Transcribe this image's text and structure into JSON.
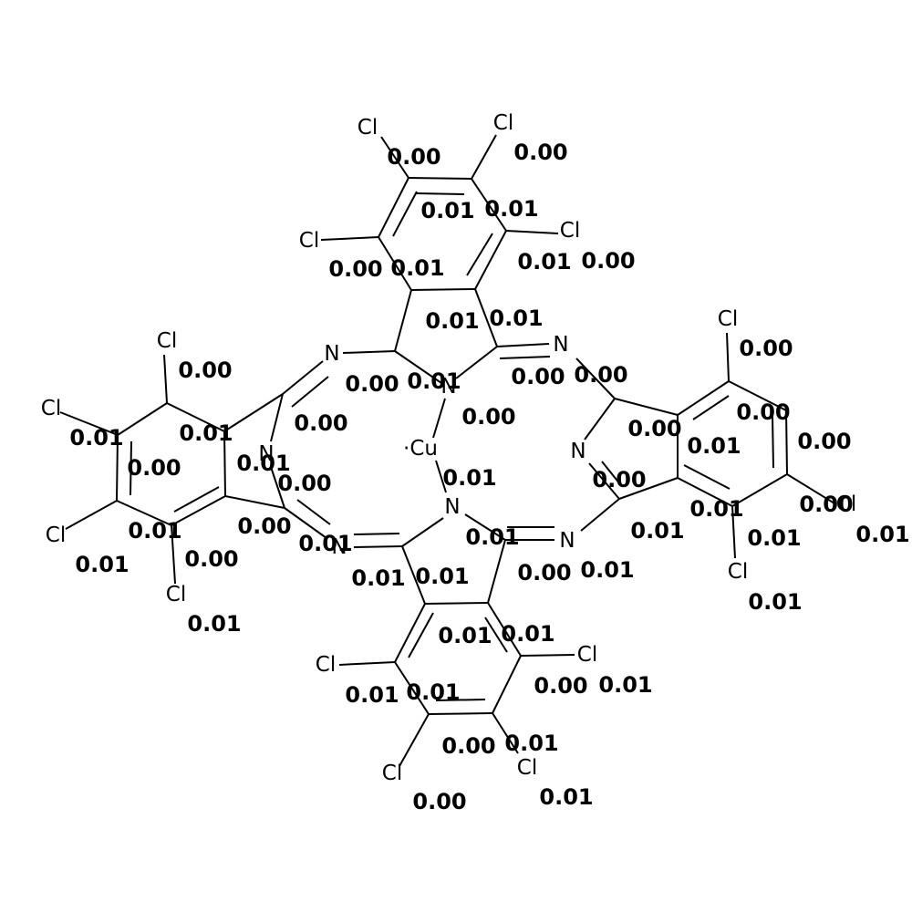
{
  "molecule": {
    "metal": "Cu",
    "metal_prefix": "·",
    "halogen": "Cl",
    "nitrogen": "N",
    "atom_value_labels": [
      "0.00",
      "0.00",
      "0.01",
      "0.01",
      "0.01",
      "0.00",
      "0.00",
      "0.01",
      "0.01",
      "0.01",
      "0.00",
      "0.00",
      "0.00",
      "0.01",
      "0.00",
      "0.00",
      "0.00",
      "0.01",
      "0.01",
      "0.00",
      "0.00",
      "0.00",
      "0.00",
      "0.00",
      "0.01",
      "0.01",
      "0.00",
      "0.00",
      "0.01",
      "0.00",
      "0.01",
      "0.01",
      "0.01",
      "0.01",
      "0.01",
      "0.01",
      "0.00",
      "0.01",
      "0.01",
      "0.01",
      "0.00",
      "0.01",
      "0.01",
      "0.00",
      "0.01",
      "0.01",
      "0.01",
      "0.01",
      "0.01",
      "0.01",
      "0.00",
      "0.01",
      "0.00",
      "0.01",
      "0.00",
      "0.01",
      "0.00",
      "0.01",
      "0.01",
      "0.00",
      "0.01",
      "0.01",
      "0.00",
      "0.00",
      "0.00",
      "0.01",
      "0.01",
      "0.01",
      "0.01",
      "0.01",
      "0.01",
      "0.00"
    ]
  }
}
